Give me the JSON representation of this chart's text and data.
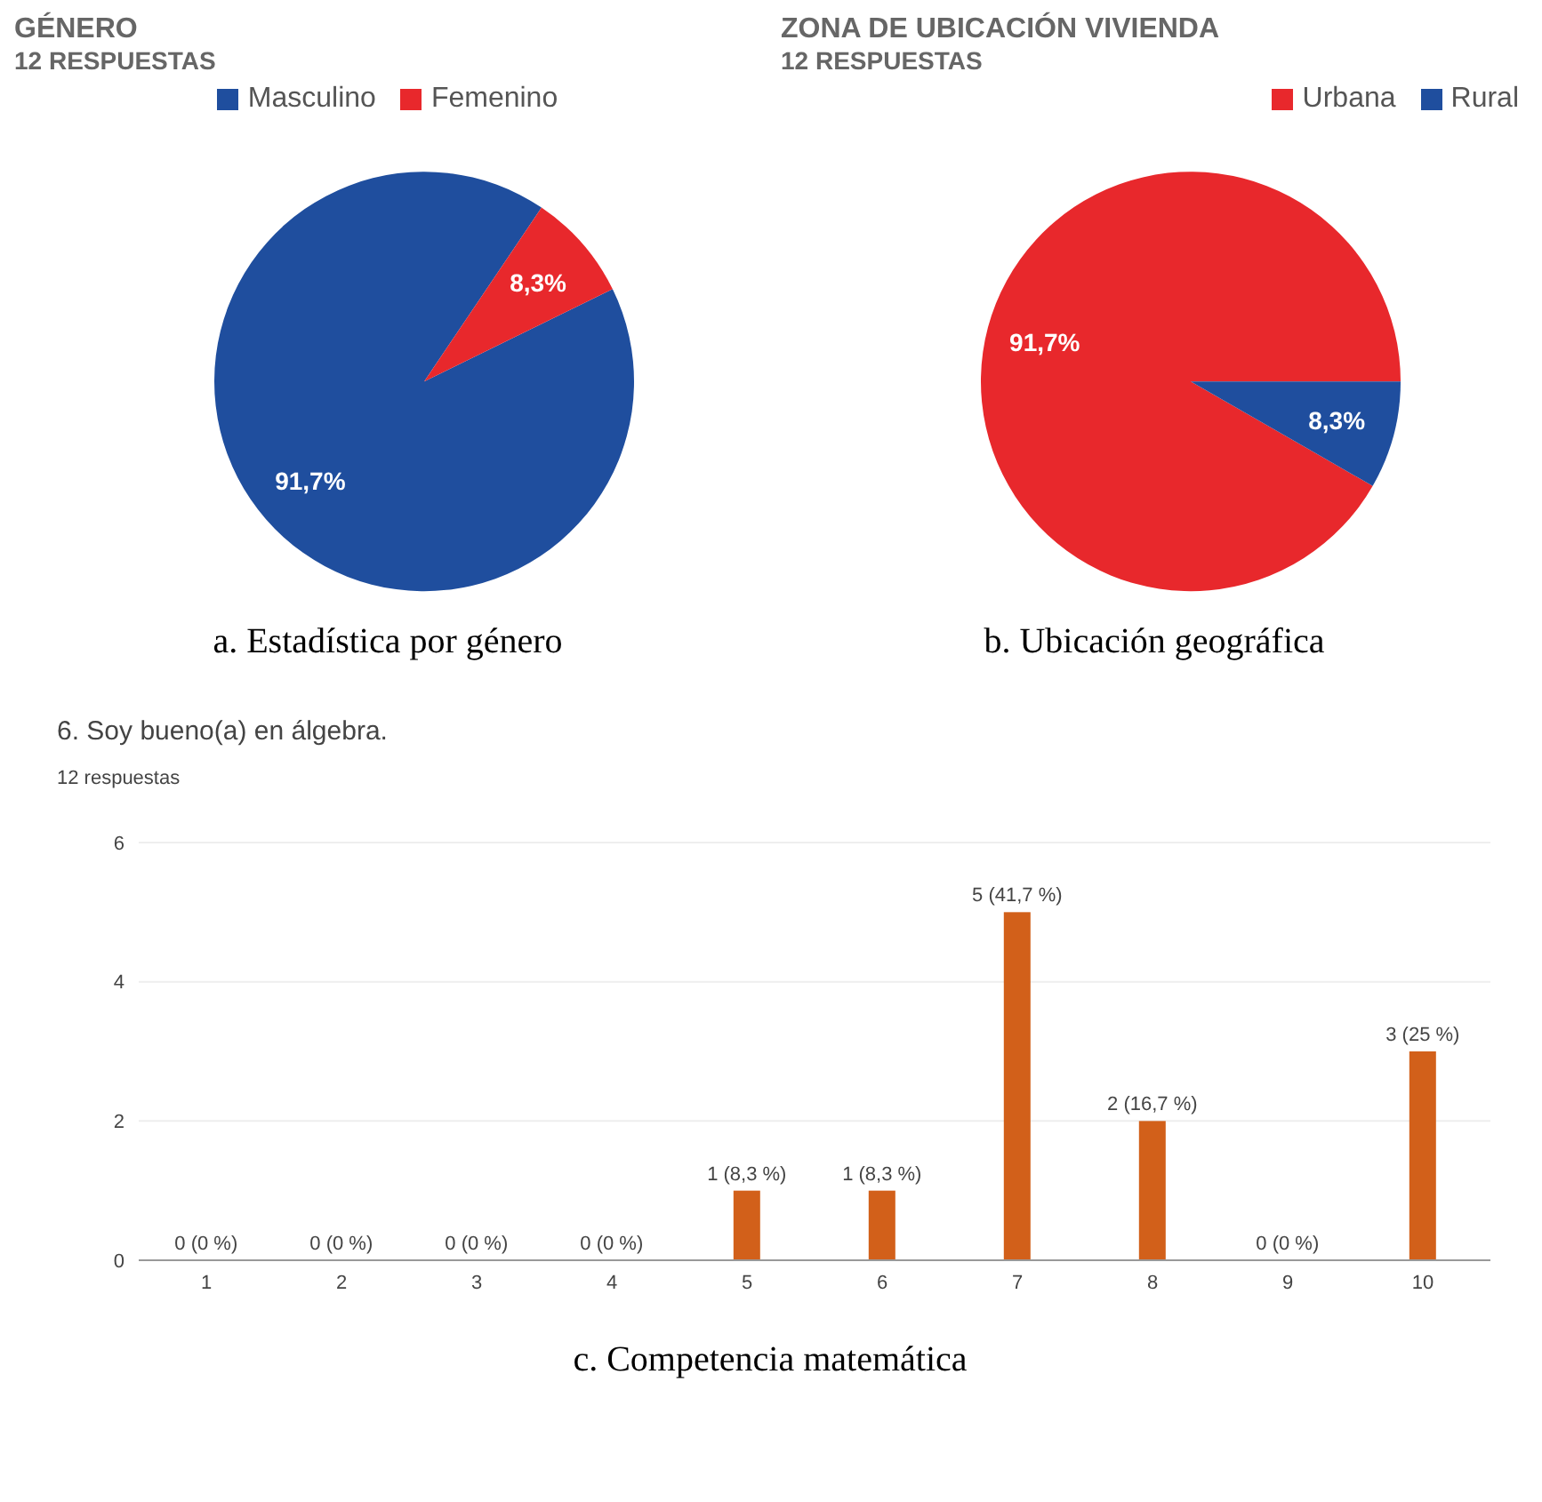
{
  "chart_data": [
    {
      "type": "pie",
      "title": "GÉNERO",
      "subtitle": "12 RESPUESTAS",
      "categories": [
        "Masculino",
        "Femenino"
      ],
      "values": [
        91.7,
        8.3
      ],
      "colors": [
        "#1f4e9e",
        "#e8282c"
      ],
      "value_labels": [
        "91,7%",
        "8,3%"
      ],
      "legend": "top",
      "annotations": [
        "a. Estadística por género"
      ]
    },
    {
      "type": "pie",
      "title": "ZONA DE UBICACIÓN VIVIENDA",
      "subtitle": "12 RESPUESTAS",
      "categories": [
        "Urbana",
        "Rural"
      ],
      "values": [
        91.7,
        8.3
      ],
      "colors": [
        "#e8282c",
        "#1f4e9e"
      ],
      "value_labels": [
        "91,7%",
        "8,3%"
      ],
      "legend": "top right",
      "annotations": [
        "b. Ubicación geográfica"
      ]
    },
    {
      "type": "bar",
      "title": "6. Soy bueno(a) en álgebra.",
      "subtitle": "12 respuestas",
      "categories": [
        "1",
        "2",
        "3",
        "4",
        "5",
        "6",
        "7",
        "8",
        "9",
        "10"
      ],
      "values": [
        0,
        0,
        0,
        0,
        1,
        1,
        5,
        2,
        0,
        3
      ],
      "color": "#d2601a",
      "value_labels": [
        "0 (0 %)",
        "0 (0 %)",
        "0 (0 %)",
        "0 (0 %)",
        "1 (8,3 %)",
        "1 (8,3 %)",
        "5 (41,7 %)",
        "2 (16,7 %)",
        "0 (0 %)",
        "3 (25 %)"
      ],
      "ylim": [
        0,
        6
      ],
      "yticks": [
        0,
        2,
        4,
        6
      ],
      "grid": "y",
      "annotations": [
        "c. Competencia matemática"
      ]
    }
  ]
}
